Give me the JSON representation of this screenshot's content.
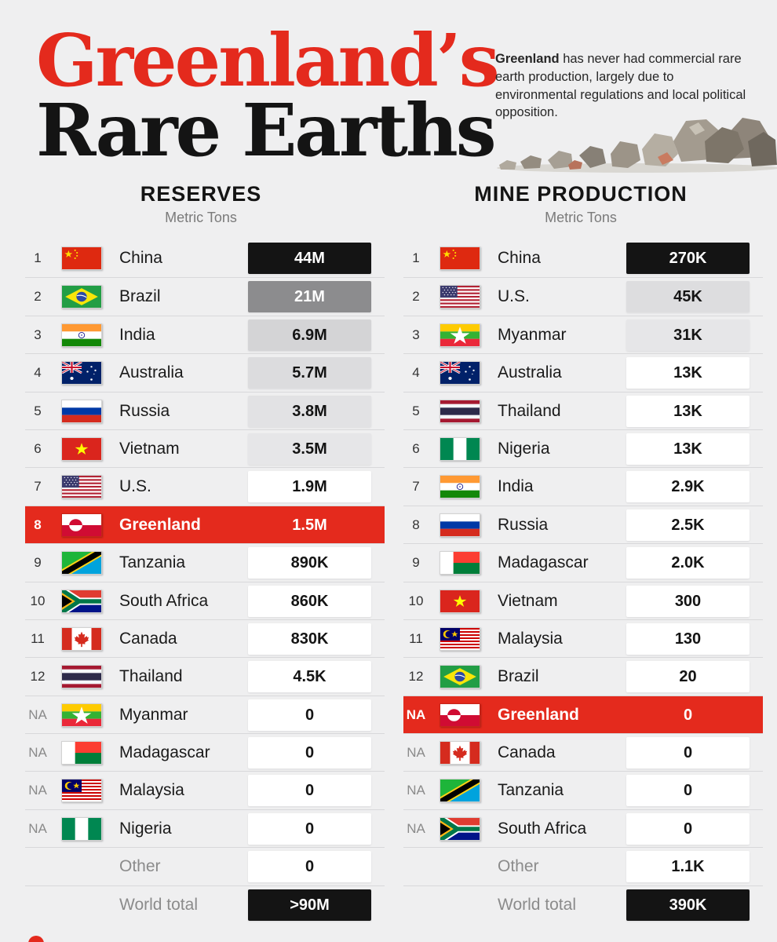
{
  "title": {
    "line1": "Greenland’s",
    "line2": "Rare Earths"
  },
  "intro": {
    "bold": "Greenland",
    "text": " has never had commercial rare earth production, largely due to environmental regulations and local political opposition."
  },
  "chart_data": [
    {
      "type": "table",
      "title": "RESERVES",
      "subtitle": "Metric Tons",
      "rows": [
        {
          "rank": "1",
          "country": "China",
          "flag": "china-flag-icon",
          "value": "44M",
          "num": 44000000
        },
        {
          "rank": "2",
          "country": "Brazil",
          "flag": "brazil-flag-icon",
          "value": "21M",
          "num": 21000000
        },
        {
          "rank": "3",
          "country": "India",
          "flag": "india-flag-icon",
          "value": "6.9M",
          "num": 6900000
        },
        {
          "rank": "4",
          "country": "Australia",
          "flag": "australia-flag-icon",
          "value": "5.7M",
          "num": 5700000
        },
        {
          "rank": "5",
          "country": "Russia",
          "flag": "russia-flag-icon",
          "value": "3.8M",
          "num": 3800000
        },
        {
          "rank": "6",
          "country": "Vietnam",
          "flag": "vietnam-flag-icon",
          "value": "3.5M",
          "num": 3500000
        },
        {
          "rank": "7",
          "country": "U.S.",
          "flag": "us-flag-icon",
          "value": "1.9M",
          "num": 1900000
        },
        {
          "rank": "8",
          "country": "Greenland",
          "flag": "greenland-flag-icon",
          "value": "1.5M",
          "num": 1500000,
          "highlight": true
        },
        {
          "rank": "9",
          "country": "Tanzania",
          "flag": "tanzania-flag-icon",
          "value": "890K",
          "num": 890000
        },
        {
          "rank": "10",
          "country": "South Africa",
          "flag": "south-africa-flag-icon",
          "value": "860K",
          "num": 860000
        },
        {
          "rank": "11",
          "country": "Canada",
          "flag": "canada-flag-icon",
          "value": "830K",
          "num": 830000
        },
        {
          "rank": "12",
          "country": "Thailand",
          "flag": "thailand-flag-icon",
          "value": "4.5K",
          "num": 4500
        },
        {
          "rank": "NA",
          "country": "Myanmar",
          "flag": "myanmar-flag-icon",
          "value": "0",
          "num": 0
        },
        {
          "rank": "NA",
          "country": "Madagascar",
          "flag": "madagascar-flag-icon",
          "value": "0",
          "num": 0
        },
        {
          "rank": "NA",
          "country": "Malaysia",
          "flag": "malaysia-flag-icon",
          "value": "0",
          "num": 0
        },
        {
          "rank": "NA",
          "country": "Nigeria",
          "flag": "nigeria-flag-icon",
          "value": "0",
          "num": 0
        },
        {
          "rank": "",
          "country": "Other",
          "flag": "",
          "value": "0",
          "num": 0,
          "muted": true
        },
        {
          "rank": "",
          "country": "World total",
          "flag": "",
          "value": ">90M",
          "num": 90000000,
          "muted": true,
          "total": true
        }
      ]
    },
    {
      "type": "table",
      "title": "MINE PRODUCTION",
      "subtitle": "Metric Tons",
      "rows": [
        {
          "rank": "1",
          "country": "China",
          "flag": "china-flag-icon",
          "value": "270K",
          "num": 270000
        },
        {
          "rank": "2",
          "country": "U.S.",
          "flag": "us-flag-icon",
          "value": "45K",
          "num": 45000
        },
        {
          "rank": "3",
          "country": "Myanmar",
          "flag": "myanmar-flag-icon",
          "value": "31K",
          "num": 31000
        },
        {
          "rank": "4",
          "country": "Australia",
          "flag": "australia-flag-icon",
          "value": "13K",
          "num": 13000
        },
        {
          "rank": "5",
          "country": "Thailand",
          "flag": "thailand-flag-icon",
          "value": "13K",
          "num": 13000
        },
        {
          "rank": "6",
          "country": "Nigeria",
          "flag": "nigeria-flag-icon",
          "value": "13K",
          "num": 13000
        },
        {
          "rank": "7",
          "country": "India",
          "flag": "india-flag-icon",
          "value": "2.9K",
          "num": 2900
        },
        {
          "rank": "8",
          "country": "Russia",
          "flag": "russia-flag-icon",
          "value": "2.5K",
          "num": 2500
        },
        {
          "rank": "9",
          "country": "Madagascar",
          "flag": "madagascar-flag-icon",
          "value": "2.0K",
          "num": 2000
        },
        {
          "rank": "10",
          "country": "Vietnam",
          "flag": "vietnam-flag-icon",
          "value": "300",
          "num": 300
        },
        {
          "rank": "11",
          "country": "Malaysia",
          "flag": "malaysia-flag-icon",
          "value": "130",
          "num": 130
        },
        {
          "rank": "12",
          "country": "Brazil",
          "flag": "brazil-flag-icon",
          "value": "20",
          "num": 20
        },
        {
          "rank": "NA",
          "country": "Greenland",
          "flag": "greenland-flag-icon",
          "value": "0",
          "num": 0,
          "highlight": true
        },
        {
          "rank": "NA",
          "country": "Canada",
          "flag": "canada-flag-icon",
          "value": "0",
          "num": 0
        },
        {
          "rank": "NA",
          "country": "Tanzania",
          "flag": "tanzania-flag-icon",
          "value": "0",
          "num": 0
        },
        {
          "rank": "NA",
          "country": "South Africa",
          "flag": "south-africa-flag-icon",
          "value": "0",
          "num": 0
        },
        {
          "rank": "",
          "country": "Other",
          "flag": "",
          "value": "1.1K",
          "num": 1100,
          "muted": true
        },
        {
          "rank": "",
          "country": "World total",
          "flag": "",
          "value": "390K",
          "num": 390000,
          "muted": true,
          "total": true
        }
      ]
    }
  ],
  "colors": {
    "accent": "#e42a1d",
    "top_cell": "#141414",
    "cell_bg": "#ffffff",
    "background": "#efeff0"
  }
}
